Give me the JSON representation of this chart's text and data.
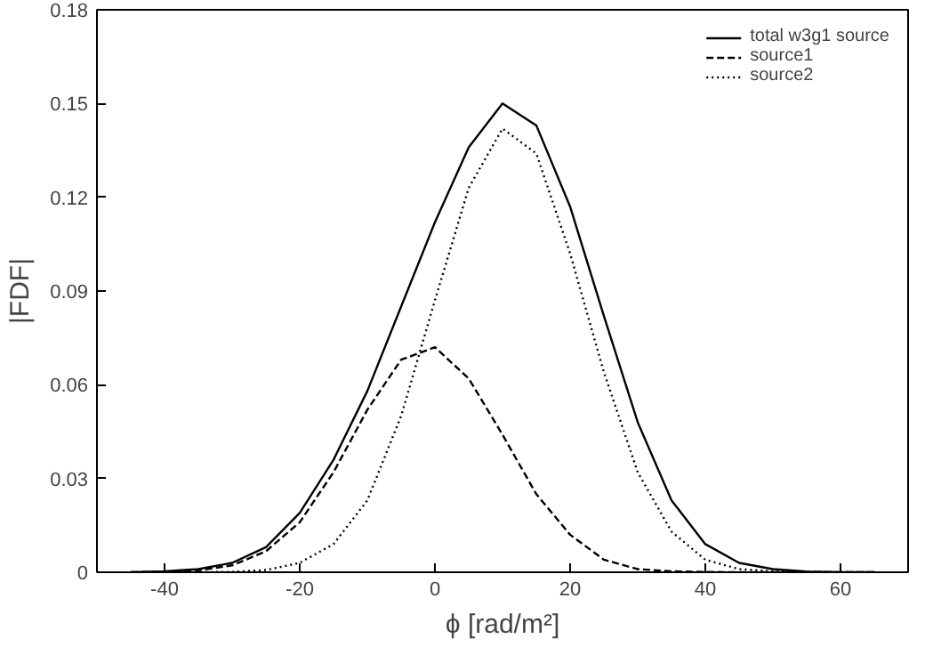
{
  "chart_data": {
    "type": "line",
    "xlabel": "ϕ [rad/m²]",
    "ylabel": "|FDF|",
    "x": [
      -45,
      -40,
      -35,
      -30,
      -25,
      -20,
      -15,
      -10,
      -5,
      0,
      5,
      10,
      15,
      20,
      25,
      30,
      35,
      40,
      45,
      50,
      55,
      60,
      65
    ],
    "xlim": [
      -50,
      70
    ],
    "xticks": [
      -40,
      -20,
      0,
      20,
      40,
      60
    ],
    "ylim": [
      0,
      0.18
    ],
    "yticks": [
      0,
      0.03,
      0.06,
      0.09,
      0.12,
      0.15,
      0.18
    ],
    "grid": false,
    "legend": "top right",
    "marker": "none",
    "series": [
      {
        "name": "total w3g1 source",
        "color": "#000000",
        "line_style": "solid",
        "values": [
          0,
          0.0003,
          0.001,
          0.003,
          0.008,
          0.019,
          0.036,
          0.058,
          0.085,
          0.112,
          0.136,
          0.15,
          0.143,
          0.117,
          0.082,
          0.048,
          0.023,
          0.009,
          0.003,
          0.001,
          0.0002,
          0,
          0
        ]
      },
      {
        "name": "source1",
        "color": "#000000",
        "line_style": "dashed",
        "values": [
          0,
          0.0001,
          0.0006,
          0.0022,
          0.0067,
          0.016,
          0.032,
          0.052,
          0.068,
          0.072,
          0.062,
          0.044,
          0.025,
          0.012,
          0.004,
          0.001,
          0.0003,
          0.0001,
          0,
          0,
          0,
          0,
          0
        ]
      },
      {
        "name": "source2",
        "color": "#000000",
        "line_style": "dotted",
        "values": [
          0,
          0,
          0,
          0.0001,
          0.0007,
          0.003,
          0.009,
          0.023,
          0.05,
          0.087,
          0.123,
          0.142,
          0.134,
          0.102,
          0.064,
          0.032,
          0.013,
          0.004,
          0.001,
          0.0003,
          0.0001,
          0,
          0
        ]
      }
    ]
  }
}
